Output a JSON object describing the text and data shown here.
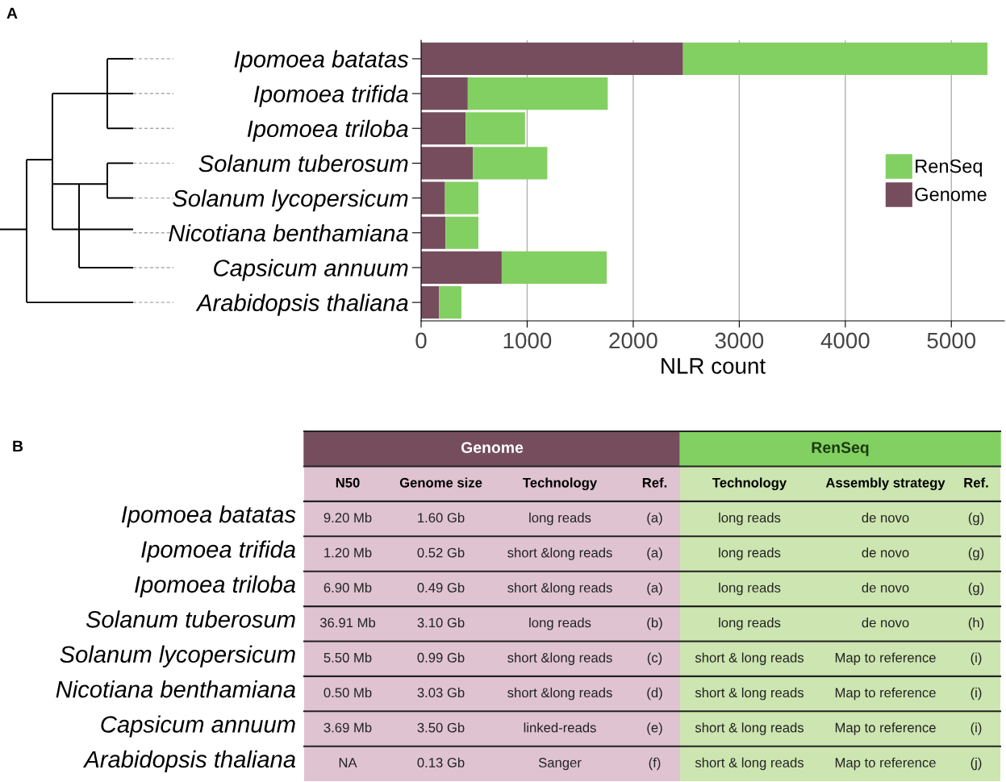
{
  "chart_data": [
    {
      "type": "bar",
      "orientation": "horizontal",
      "stacked": true,
      "xlabel": "NLR count",
      "annotations": [
        "A"
      ],
      "categories": [
        "Ipomoea batatas",
        "Ipomoea trifida",
        "Ipomoea triloba",
        "Solanum tuberosum",
        "Solanum lycopersicum",
        "Nicotiana benthamiana",
        "Capsicum annuum",
        "Arabidopsis thaliana"
      ],
      "series": [
        {
          "name": "Genome",
          "color": "#764d5c",
          "values": [
            2470,
            440,
            420,
            490,
            225,
            230,
            760,
            170
          ]
        },
        {
          "name": "RenSeq",
          "color": "#83d062",
          "values": [
            2870,
            1320,
            560,
            700,
            315,
            310,
            990,
            210
          ]
        }
      ],
      "xlim": [
        0,
        5500
      ],
      "xticks": [
        0,
        1000,
        2000,
        3000,
        4000,
        5000
      ],
      "grid": "x",
      "legend": "right"
    },
    {
      "type": "other",
      "annotations": [
        "B",
        "Genome",
        "RenSeq"
      ],
      "colors": [
        "#dfc3d1",
        "#dfc3d1",
        "#dfc3d1",
        "#dfc3d1",
        "#cde5b0",
        "#cde5b0",
        "#cde5b0"
      ],
      "categories": [
        "N50",
        "Genome size",
        "Technology",
        "Ref.",
        "Technology",
        "Assembly strategy",
        "Ref."
      ],
      "y_categories": [
        "Ipomoea batatas",
        "Ipomoea trifida",
        "Ipomoea triloba",
        "Solanum tuberosum",
        "Solanum lycopersicum",
        "Nicotiana benthamiana",
        "Capsicum annuum",
        "Arabidopsis thaliana"
      ],
      "cell_labels": [
        [
          "9.20 Mb",
          "1.60 Gb",
          "long reads",
          "(a)",
          "long reads",
          "de novo",
          "(g)"
        ],
        [
          "1.20 Mb",
          "0.52 Gb",
          "short &long reads",
          "(a)",
          "long reads",
          "de novo",
          "(g)"
        ],
        [
          "6.90 Mb",
          "0.49 Gb",
          "short &long reads",
          "(a)",
          "long reads",
          "de novo",
          "(g)"
        ],
        [
          "36.91 Mb",
          "3.10 Gb",
          "long reads",
          "(b)",
          "long reads",
          "de novo",
          "(h)"
        ],
        [
          "5.50 Mb",
          "0.99 Gb",
          "short &long reads",
          "(c)",
          "short & long reads",
          "Map to reference",
          "(i)"
        ],
        [
          "0.50 Mb",
          "3.03 Gb",
          "short &long reads",
          "(d)",
          "short & long reads",
          "Map to reference",
          "(i)"
        ],
        [
          "3.69 Mb",
          "3.50 Gb",
          "linked-reads",
          "(e)",
          "short & long reads",
          "Map to reference",
          "(i)"
        ],
        [
          "NA",
          "0.13 Gb",
          "Sanger",
          "(f)",
          "short & long reads",
          "Map to reference",
          "(j)"
        ]
      ]
    }
  ]
}
